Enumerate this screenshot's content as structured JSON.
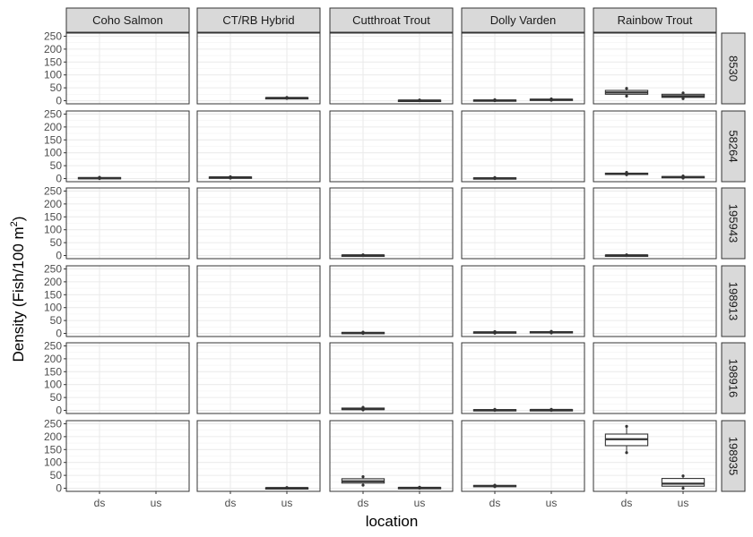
{
  "chart_data": {
    "type": "boxplot-facet-grid",
    "xlabel": "location",
    "ylabel_main": "Density (Fish/100 m",
    "ylabel_sup": "2",
    "ylabel_close": ")",
    "x_categories": [
      "ds",
      "us"
    ],
    "y_ticks": [
      0,
      50,
      100,
      150,
      200,
      250
    ],
    "ylim": [
      -12,
      262
    ],
    "columns": [
      "Coho Salmon",
      "CT/RB Hybrid",
      "Cutthroat Trout",
      "Dolly Varden",
      "Rainbow Trout"
    ],
    "rows": [
      "8530",
      "58264",
      "195943",
      "198913",
      "198916",
      "198935"
    ],
    "grid": "on",
    "boxes": [
      {
        "row": "8530",
        "col": "CT/RB Hybrid",
        "x": "us",
        "min": 9,
        "q1": 10,
        "median": 11,
        "q3": 12,
        "max": 13,
        "outliers": []
      },
      {
        "row": "8530",
        "col": "Cutthroat Trout",
        "x": "us",
        "min": 0,
        "q1": 0,
        "median": 1,
        "q3": 2,
        "max": 3,
        "outliers": []
      },
      {
        "row": "8530",
        "col": "Dolly Varden",
        "x": "ds",
        "min": 0,
        "q1": 0,
        "median": 1,
        "q3": 3,
        "max": 4,
        "outliers": []
      },
      {
        "row": "8530",
        "col": "Dolly Varden",
        "x": "us",
        "min": 2,
        "q1": 3,
        "median": 4,
        "q3": 6,
        "max": 7,
        "outliers": []
      },
      {
        "row": "8530",
        "col": "Rainbow Trout",
        "x": "ds",
        "min": 18,
        "q1": 25,
        "median": 32,
        "q3": 40,
        "max": 48,
        "outliers": []
      },
      {
        "row": "8530",
        "col": "Rainbow Trout",
        "x": "us",
        "min": 8,
        "q1": 13,
        "median": 18,
        "q3": 25,
        "max": 30,
        "outliers": []
      },
      {
        "row": "58264",
        "col": "Coho Salmon",
        "x": "ds",
        "min": 0,
        "q1": 1,
        "median": 2,
        "q3": 4,
        "max": 5,
        "outliers": []
      },
      {
        "row": "58264",
        "col": "CT/RB Hybrid",
        "x": "ds",
        "min": 2,
        "q1": 3,
        "median": 5,
        "q3": 6,
        "max": 7,
        "outliers": []
      },
      {
        "row": "58264",
        "col": "Dolly Varden",
        "x": "ds",
        "min": 0,
        "q1": 0,
        "median": 1,
        "q3": 3,
        "max": 4,
        "outliers": []
      },
      {
        "row": "58264",
        "col": "Rainbow Trout",
        "x": "ds",
        "min": 15,
        "q1": 16,
        "median": 18,
        "q3": 21,
        "max": 24,
        "outliers": []
      },
      {
        "row": "58264",
        "col": "Rainbow Trout",
        "x": "us",
        "min": 2,
        "q1": 4,
        "median": 6,
        "q3": 8,
        "max": 10,
        "outliers": []
      },
      {
        "row": "195943",
        "col": "Cutthroat Trout",
        "x": "ds",
        "min": 0,
        "q1": 0,
        "median": 1,
        "q3": 2,
        "max": 3,
        "outliers": []
      },
      {
        "row": "195943",
        "col": "Rainbow Trout",
        "x": "ds",
        "min": 0,
        "q1": 0,
        "median": 1,
        "q3": 2,
        "max": 3,
        "outliers": []
      },
      {
        "row": "198913",
        "col": "Cutthroat Trout",
        "x": "ds",
        "min": 0,
        "q1": 1,
        "median": 2,
        "q3": 4,
        "max": 5,
        "outliers": []
      },
      {
        "row": "198913",
        "col": "Dolly Varden",
        "x": "ds",
        "min": 1,
        "q1": 2,
        "median": 4,
        "q3": 6,
        "max": 7,
        "outliers": []
      },
      {
        "row": "198913",
        "col": "Dolly Varden",
        "x": "us",
        "min": 2,
        "q1": 3,
        "median": 5,
        "q3": 7,
        "max": 8,
        "outliers": []
      },
      {
        "row": "198916",
        "col": "Cutthroat Trout",
        "x": "ds",
        "min": 2,
        "q1": 3,
        "median": 5,
        "q3": 9,
        "max": 12,
        "outliers": []
      },
      {
        "row": "198916",
        "col": "Dolly Varden",
        "x": "ds",
        "min": 0,
        "q1": 0,
        "median": 1,
        "q3": 3,
        "max": 4,
        "outliers": []
      },
      {
        "row": "198916",
        "col": "Dolly Varden",
        "x": "us",
        "min": 0,
        "q1": 1,
        "median": 2,
        "q3": 3,
        "max": 4,
        "outliers": []
      },
      {
        "row": "198935",
        "col": "CT/RB Hybrid",
        "x": "us",
        "min": 0,
        "q1": 0,
        "median": 1,
        "q3": 2,
        "max": 3,
        "outliers": []
      },
      {
        "row": "198935",
        "col": "Cutthroat Trout",
        "x": "ds",
        "min": 12,
        "q1": 20,
        "median": 27,
        "q3": 37,
        "max": 45,
        "outliers": []
      },
      {
        "row": "198935",
        "col": "Cutthroat Trout",
        "x": "us",
        "min": 0,
        "q1": 1,
        "median": 2,
        "q3": 3,
        "max": 4,
        "outliers": []
      },
      {
        "row": "198935",
        "col": "Dolly Varden",
        "x": "ds",
        "min": 6,
        "q1": 7,
        "median": 9,
        "q3": 11,
        "max": 12,
        "outliers": []
      },
      {
        "row": "198935",
        "col": "Rainbow Trout",
        "x": "ds",
        "min": 138,
        "q1": 165,
        "median": 190,
        "q3": 210,
        "max": 240,
        "outliers": []
      },
      {
        "row": "198935",
        "col": "Rainbow Trout",
        "x": "us",
        "min": 0,
        "q1": 8,
        "median": 18,
        "q3": 38,
        "max": 48,
        "outliers": []
      }
    ]
  }
}
